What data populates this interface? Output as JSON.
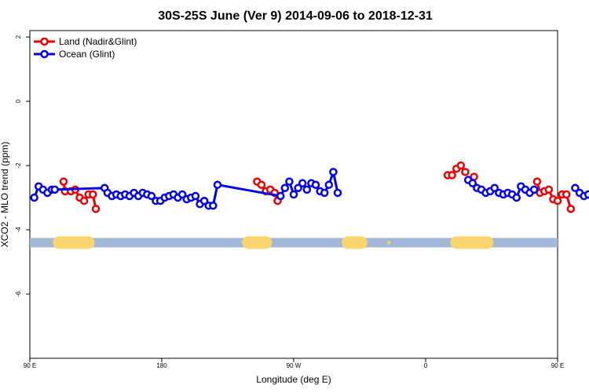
{
  "chart_data": {
    "type": "line",
    "title": "30S-25S June (Ver 9)   2014-09-06 to 2018-12-31",
    "xlabel": "Longitude (deg E)",
    "ylabel": "XCO2 - MLO trend (ppm)",
    "xlim": [
      90,
      450
    ],
    "ylim": [
      -8,
      2.2
    ],
    "x_ticks": [
      {
        "value": 90,
        "label": "90 E"
      },
      {
        "value": 180,
        "label": "180"
      },
      {
        "value": 270,
        "label": "90 W"
      },
      {
        "value": 360,
        "label": "0"
      },
      {
        "value": 450,
        "label": "90 E"
      },
      {
        "value": 540,
        "label": "180"
      }
    ],
    "y_ticks": [
      {
        "value": 2,
        "label": "2"
      },
      {
        "value": 0,
        "label": "0"
      },
      {
        "value": -2,
        "label": "-2"
      },
      {
        "value": -4,
        "label": "-4"
      },
      {
        "value": -6,
        "label": "-6"
      }
    ],
    "grid": false,
    "legend_position": "top-left",
    "colors": {
      "land": "#ee0000",
      "ocean": "#0000ee",
      "band_ocean": "#a3b8d6",
      "band_land": "#f9d56e"
    },
    "surface_band": {
      "y": -4.4,
      "land_segments": [
        [
          110,
          130
        ],
        [
          239,
          251
        ],
        [
          307,
          316
        ],
        [
          335,
          335
        ],
        [
          381,
          402
        ]
      ]
    },
    "series": [
      {
        "name": "Land (Nadir&Glint)",
        "color": "#ee0000",
        "segments": [
          [
            [
              113,
              -2.5
            ],
            [
              114,
              -2.8
            ],
            [
              118,
              -2.8
            ],
            [
              121,
              -2.75
            ],
            [
              124,
              -3.0
            ],
            [
              127,
              -3.1
            ],
            [
              130,
              -2.9
            ],
            [
              133,
              -2.9
            ],
            [
              135,
              -3.35
            ]
          ],
          [
            [
              245,
              -2.5
            ],
            [
              248,
              -2.6
            ],
            [
              251,
              -2.8
            ],
            [
              254,
              -2.75
            ],
            [
              257,
              -2.85
            ],
            [
              259,
              -3.1
            ]
          ],
          [
            [
              375,
              -2.3
            ],
            [
              378,
              -2.3
            ],
            [
              381,
              -2.1
            ],
            [
              384,
              -2.0
            ],
            [
              387,
              -2.2
            ]
          ],
          [
            [
              393,
              -2.35
            ]
          ],
          [
            [
              436,
              -2.5
            ],
            [
              438,
              -2.85
            ],
            [
              441,
              -2.8
            ],
            [
              444,
              -2.75
            ],
            [
              447,
              -3.05
            ],
            [
              450,
              -3.1
            ],
            [
              453,
              -2.9
            ],
            [
              456,
              -2.9
            ],
            [
              459,
              -3.35
            ]
          ]
        ]
      },
      {
        "name": "Ocean (Glint)",
        "color": "#0000ee",
        "segments": [
          [
            [
              93,
              -3.0
            ],
            [
              96,
              -2.65
            ],
            [
              99,
              -2.75
            ],
            [
              102,
              -2.85
            ],
            [
              105,
              -2.75
            ],
            [
              107,
              -2.75
            ],
            [
              141,
              -2.7
            ],
            [
              143,
              -2.85
            ],
            [
              146,
              -2.95
            ],
            [
              149,
              -2.9
            ],
            [
              152,
              -2.95
            ],
            [
              155,
              -2.9
            ],
            [
              158,
              -2.95
            ],
            [
              161,
              -2.85
            ],
            [
              164,
              -2.95
            ],
            [
              167,
              -2.85
            ],
            [
              170,
              -2.9
            ],
            [
              173,
              -2.95
            ],
            [
              176,
              -3.1
            ],
            [
              179,
              -3.1
            ],
            [
              182,
              -3.0
            ],
            [
              185,
              -2.95
            ],
            [
              188,
              -2.9
            ],
            [
              191,
              -3.0
            ],
            [
              194,
              -2.9
            ],
            [
              197,
              -3.05
            ],
            [
              200,
              -3.0
            ],
            [
              203,
              -2.95
            ],
            [
              206,
              -3.2
            ],
            [
              209,
              -3.1
            ],
            [
              212,
              -3.25
            ],
            [
              215,
              -3.25
            ],
            [
              218,
              -2.6
            ],
            [
              261,
              -2.95
            ],
            [
              264,
              -2.7
            ],
            [
              267,
              -2.5
            ],
            [
              270,
              -2.9
            ],
            [
              273,
              -2.7
            ],
            [
              276,
              -2.55
            ],
            [
              279,
              -2.75
            ],
            [
              282,
              -2.55
            ],
            [
              285,
              -2.6
            ],
            [
              288,
              -2.8
            ],
            [
              291,
              -2.85
            ],
            [
              294,
              -2.6
            ],
            [
              297,
              -2.2
            ],
            [
              300,
              -2.85
            ]
          ],
          [
            [
              389,
              -2.45
            ],
            [
              392,
              -2.55
            ],
            [
              395,
              -2.7
            ],
            [
              398,
              -2.75
            ],
            [
              401,
              -2.85
            ],
            [
              404,
              -2.8
            ],
            [
              407,
              -2.7
            ],
            [
              410,
              -2.85
            ],
            [
              413,
              -2.9
            ],
            [
              416,
              -2.85
            ],
            [
              419,
              -2.9
            ],
            [
              422,
              -3.0
            ],
            [
              425,
              -2.65
            ],
            [
              428,
              -2.75
            ],
            [
              431,
              -2.85
            ],
            [
              434,
              -2.75
            ]
          ],
          [
            [
              462,
              -2.7
            ],
            [
              465,
              -2.85
            ],
            [
              468,
              -2.95
            ],
            [
              471,
              -2.9
            ],
            [
              474,
              -3.0
            ],
            [
              477,
              -2.9
            ]
          ]
        ]
      }
    ]
  }
}
